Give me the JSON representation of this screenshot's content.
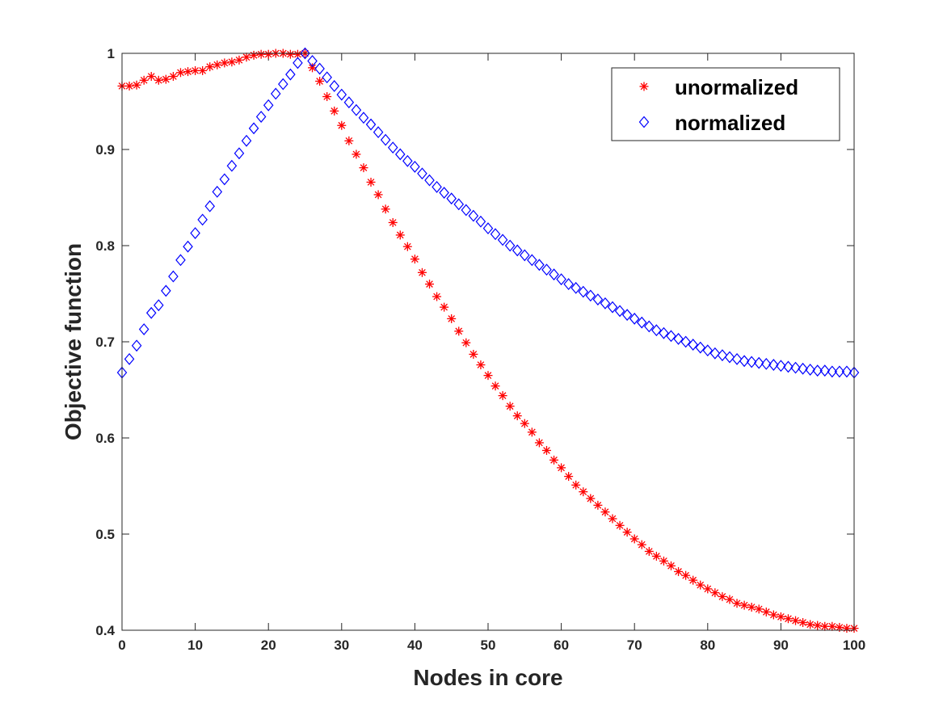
{
  "chart_data": {
    "type": "scatter",
    "title": "",
    "xlabel": "Nodes in  core",
    "ylabel": "Objective function",
    "xlim": [
      0,
      100
    ],
    "ylim": [
      0.4,
      1.0
    ],
    "xticks": [
      0,
      10,
      20,
      30,
      40,
      50,
      60,
      70,
      80,
      90,
      100
    ],
    "yticks": [
      0.4,
      0.5,
      0.6,
      0.7,
      0.8,
      0.9,
      1.0
    ],
    "xtick_labels": [
      "0",
      "10",
      "20",
      "30",
      "40",
      "50",
      "60",
      "70",
      "80",
      "90",
      "100"
    ],
    "ytick_labels": [
      "0.4",
      "0.5",
      "0.6",
      "0.7",
      "0.8",
      "0.9",
      "1"
    ],
    "grid": false,
    "legend_position": "top-right",
    "x": [
      0,
      1,
      2,
      3,
      4,
      5,
      6,
      7,
      8,
      9,
      10,
      11,
      12,
      13,
      14,
      15,
      16,
      17,
      18,
      19,
      20,
      21,
      22,
      23,
      24,
      25,
      26,
      27,
      28,
      29,
      30,
      31,
      32,
      33,
      34,
      35,
      36,
      37,
      38,
      39,
      40,
      41,
      42,
      43,
      44,
      45,
      46,
      47,
      48,
      49,
      50,
      51,
      52,
      53,
      54,
      55,
      56,
      57,
      58,
      59,
      60,
      61,
      62,
      63,
      64,
      65,
      66,
      67,
      68,
      69,
      70,
      71,
      72,
      73,
      74,
      75,
      76,
      77,
      78,
      79,
      80,
      81,
      82,
      83,
      84,
      85,
      86,
      87,
      88,
      89,
      90,
      91,
      92,
      93,
      94,
      95,
      96,
      97,
      98,
      99,
      100
    ],
    "series": [
      {
        "name": "unormalized",
        "marker": "asterisk",
        "color": "#ff0000",
        "values": [
          0.966,
          0.966,
          0.967,
          0.972,
          0.976,
          0.972,
          0.973,
          0.976,
          0.98,
          0.981,
          0.982,
          0.982,
          0.986,
          0.988,
          0.99,
          0.991,
          0.993,
          0.996,
          0.998,
          0.999,
          0.999,
          1.0,
          1.0,
          0.999,
          0.999,
          1.0,
          0.985,
          0.971,
          0.955,
          0.94,
          0.925,
          0.909,
          0.895,
          0.881,
          0.866,
          0.853,
          0.838,
          0.824,
          0.811,
          0.799,
          0.786,
          0.772,
          0.76,
          0.747,
          0.736,
          0.724,
          0.711,
          0.699,
          0.687,
          0.676,
          0.665,
          0.654,
          0.644,
          0.633,
          0.623,
          0.615,
          0.606,
          0.595,
          0.587,
          0.577,
          0.569,
          0.56,
          0.551,
          0.544,
          0.537,
          0.53,
          0.523,
          0.516,
          0.509,
          0.502,
          0.495,
          0.489,
          0.482,
          0.477,
          0.472,
          0.467,
          0.461,
          0.457,
          0.452,
          0.447,
          0.443,
          0.439,
          0.435,
          0.432,
          0.428,
          0.426,
          0.424,
          0.422,
          0.419,
          0.416,
          0.414,
          0.412,
          0.41,
          0.408,
          0.406,
          0.405,
          0.404,
          0.404,
          0.403,
          0.402,
          0.402
        ]
      },
      {
        "name": "normalized",
        "marker": "diamond",
        "color": "#0000ff",
        "values": [
          0.668,
          0.682,
          0.696,
          0.713,
          0.73,
          0.738,
          0.753,
          0.768,
          0.785,
          0.799,
          0.813,
          0.827,
          0.841,
          0.856,
          0.869,
          0.883,
          0.896,
          0.909,
          0.922,
          0.934,
          0.946,
          0.958,
          0.968,
          0.978,
          0.99,
          1.0,
          0.992,
          0.984,
          0.975,
          0.966,
          0.957,
          0.949,
          0.941,
          0.933,
          0.926,
          0.918,
          0.91,
          0.902,
          0.895,
          0.888,
          0.882,
          0.875,
          0.868,
          0.861,
          0.855,
          0.849,
          0.843,
          0.837,
          0.831,
          0.825,
          0.818,
          0.812,
          0.806,
          0.8,
          0.795,
          0.79,
          0.785,
          0.78,
          0.775,
          0.77,
          0.765,
          0.76,
          0.756,
          0.752,
          0.748,
          0.744,
          0.74,
          0.736,
          0.732,
          0.728,
          0.724,
          0.72,
          0.716,
          0.712,
          0.709,
          0.706,
          0.703,
          0.7,
          0.697,
          0.694,
          0.691,
          0.688,
          0.686,
          0.684,
          0.682,
          0.68,
          0.679,
          0.678,
          0.677,
          0.676,
          0.675,
          0.674,
          0.673,
          0.672,
          0.671,
          0.67,
          0.67,
          0.669,
          0.669,
          0.669,
          0.668
        ]
      }
    ]
  }
}
